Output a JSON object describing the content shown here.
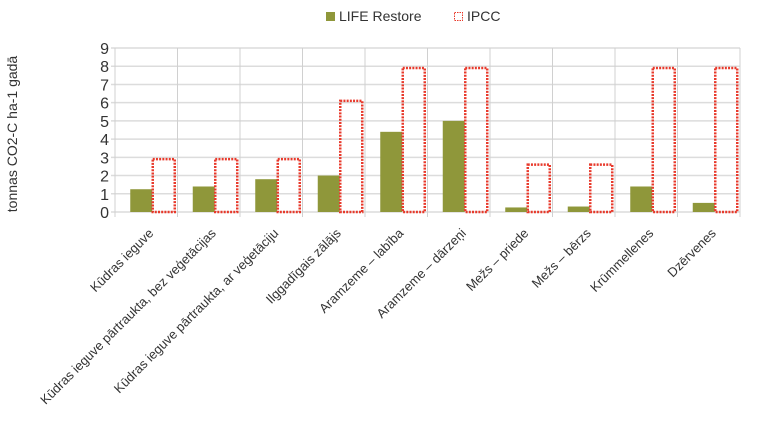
{
  "chart_data": {
    "type": "bar",
    "title": "",
    "xlabel": "",
    "ylabel": "tonnas CO2-C ha-1 gadā",
    "ylim": [
      0,
      9
    ],
    "yticks": [
      0,
      1,
      2,
      3,
      4,
      5,
      6,
      7,
      8,
      9
    ],
    "grid": true,
    "legend_position": "top",
    "categories": [
      "Kūdras ieguve",
      "Kūdras ieguve pārtraukta, bez veģetācijas",
      "Kūdras ieguve pārtraukta, ar veģetāciju",
      "Ilggadīgais zālājs",
      "Aramzeme – labība",
      "Aramzeme – dārzeņi",
      "Mežs – priede",
      "Mežs – bērzs",
      "Krūmmellenes",
      "Dzērvenes"
    ],
    "series": [
      {
        "name": "LIFE Restore",
        "color": "#8f973a",
        "values": [
          1.25,
          1.4,
          1.8,
          2.0,
          4.4,
          5.0,
          0.25,
          0.3,
          1.4,
          0.5
        ]
      },
      {
        "name": "IPCC",
        "color": "#e8392b",
        "values": [
          2.9,
          2.9,
          2.9,
          6.1,
          7.9,
          7.9,
          2.6,
          2.6,
          7.9,
          7.9
        ]
      }
    ]
  }
}
